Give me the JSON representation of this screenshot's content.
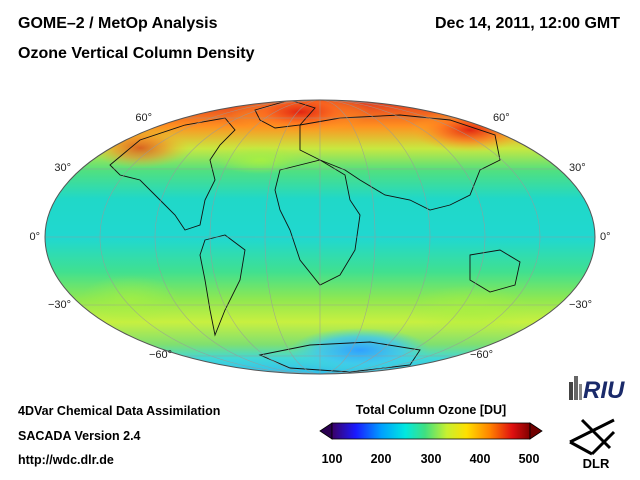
{
  "header": {
    "title": "GOME–2 / MetOp Analysis",
    "subtitle": "Ozone Vertical Column Density",
    "datetime": "Dec 14, 2011, 12:00 GMT"
  },
  "map": {
    "projection": "Hammer-Aitoff",
    "lat_labels": [
      "60°",
      "30°",
      "0°",
      "−30°",
      "−60°"
    ]
  },
  "footer": {
    "line1": "4DVar Chemical Data Assimilation",
    "line2": "SACADA Version 2.4",
    "line3": "http://wdc.dlr.de"
  },
  "colorbar": {
    "title": "Total Column Ozone [DU]",
    "ticks": [
      "100",
      "200",
      "300",
      "400",
      "500"
    ],
    "colors": [
      "#3a0066",
      "#1a1aff",
      "#00a0ff",
      "#00e8e0",
      "#40e080",
      "#c8f030",
      "#ffe000",
      "#ff8000",
      "#e01010",
      "#800000"
    ]
  },
  "logos": {
    "riu": "RIU",
    "dlr": "DLR"
  }
}
